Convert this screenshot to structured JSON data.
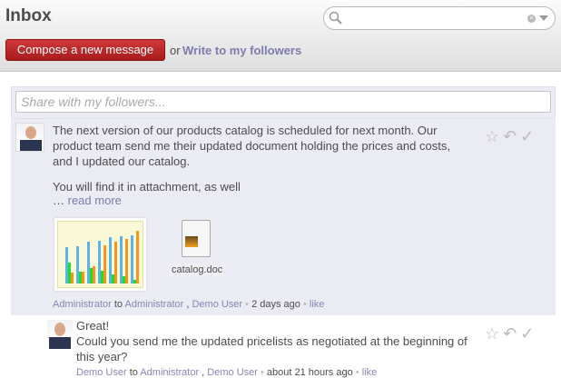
{
  "header": {
    "title": "Inbox",
    "search_value": "",
    "compose_label": "Compose a new message",
    "or_text": "or",
    "write_followers_label": "Write to my followers"
  },
  "share": {
    "placeholder": "Share with my followers..."
  },
  "messages": [
    {
      "body_lines": [
        "The next version of our products catalog is scheduled for next month. Our product team send me their updated document holding the prices and costs, and I updated our catalog.",
        "You will find it in attachment, as well"
      ],
      "ellipsis": "…",
      "read_more": "read more",
      "attachments": [
        {
          "type": "image",
          "name": "chart"
        },
        {
          "type": "document",
          "name": "catalog.doc"
        }
      ],
      "author": "Administrator",
      "to": "to",
      "recipients": [
        "Administrator",
        "Demo User"
      ],
      "time": "2 days ago",
      "like": "like"
    },
    {
      "body_lines": [
        "Great!",
        "Could you send me the updated pricelists as negotiated at the beginning of this year?"
      ],
      "author": "Demo User",
      "to": "to",
      "recipients": [
        "Administrator",
        "Demo User"
      ],
      "time": "about 21 hours ago",
      "like": "like"
    }
  ],
  "icons": [
    "star-icon",
    "reply-icon",
    "check-icon"
  ],
  "colors": {
    "compose": "#b82526",
    "link": "#7c7bad",
    "panel": "#ebebf4"
  }
}
